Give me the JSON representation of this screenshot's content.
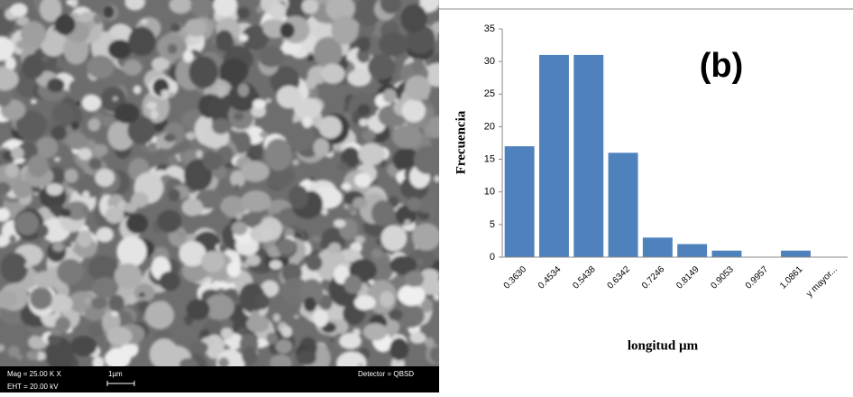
{
  "micrograph": {
    "mag": "Mag = 25.00 K X",
    "scale": "1µm",
    "detector": "Detector = QBSD",
    "eht": "EHT = 20.00 kV"
  },
  "chart_data": {
    "type": "bar",
    "annotation": "(b)",
    "y_label": "Frecuencia",
    "x_label": "longitud µm",
    "categories": [
      "0.3630",
      "0.4534",
      "0.5438",
      "0.6342",
      "0.7246",
      "0.8149",
      "0.9053",
      "0.9957",
      "1.0861",
      "y mayor..."
    ],
    "values": [
      17,
      31,
      31,
      16,
      3,
      2,
      1,
      0,
      1,
      0
    ],
    "color": "#4f81bd",
    "ylim": [
      0,
      35
    ],
    "yticks": [
      0,
      5,
      10,
      15,
      20,
      25,
      30,
      35
    ]
  }
}
